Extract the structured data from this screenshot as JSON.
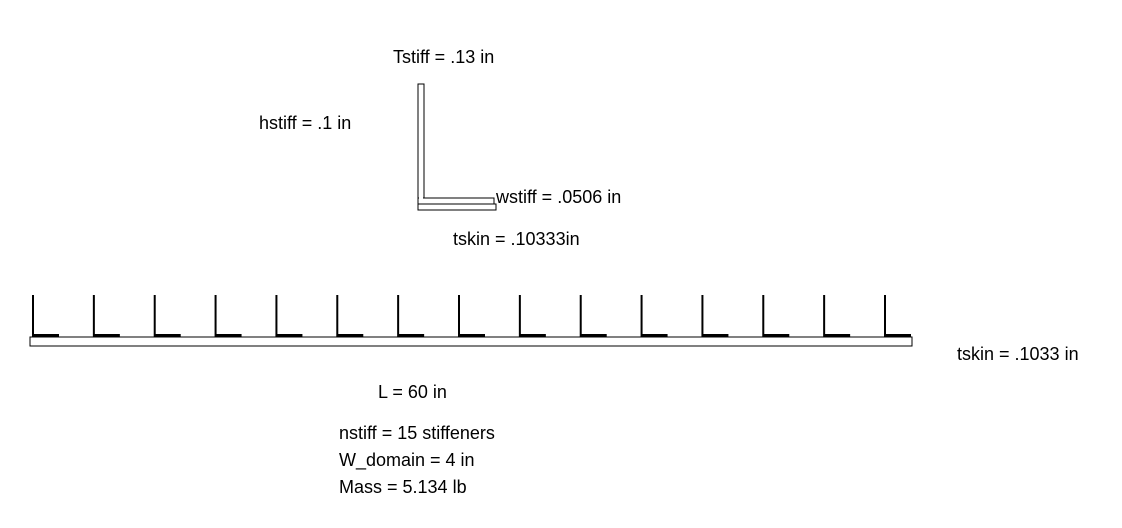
{
  "labels": {
    "tstiff": "Tstiff = .13 in",
    "hstiff": "hstiff = .1 in",
    "wstiff": "wstiff = .0506 in",
    "tskin_detail": "tskin = .10333in",
    "tskin_panel": "tskin = .1033 in",
    "length": "L = 60 in"
  },
  "summary": {
    "nstiff": "nstiff = 15 stiffeners",
    "w_domain": "W_domain = 4 in",
    "mass": "Mass = 5.134 lb"
  },
  "panel": {
    "stiffener_count": 15
  },
  "colors": {
    "stroke": "#000000",
    "fill": "#ffffff"
  }
}
